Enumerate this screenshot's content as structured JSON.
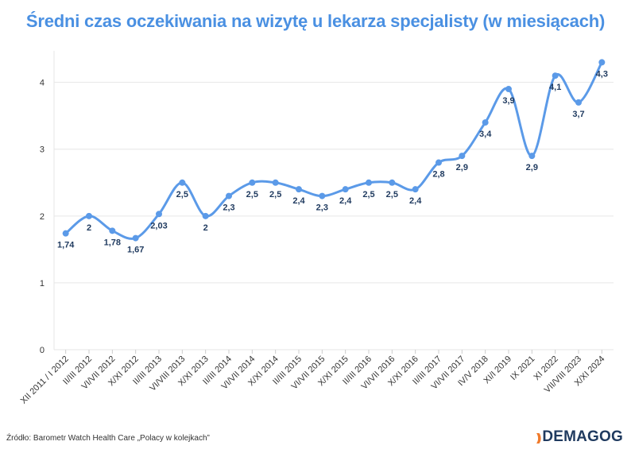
{
  "title": "Średni czas oczekiwania na wizytę u lekarza specjalisty (w miesiącach)",
  "source": "Źródło: Barometr Watch Health Care „Polacy w kolejkach”",
  "brand": {
    "name": "DEMAGOG",
    "mark": "))"
  },
  "colors": {
    "line": "#5b9ae8",
    "title": "#4a90e2",
    "labels": "#1f3a5f",
    "grid": "#e6e6e6",
    "brand_mark": "#f07a2b"
  },
  "chart_data": {
    "type": "line",
    "title": "Średni czas oczekiwania na wizytę u lekarza specjalisty (w miesiącach)",
    "xlabel": "",
    "ylabel": "",
    "ylim": [
      0,
      4.4
    ],
    "yticks": [
      "0",
      "1",
      "2",
      "3",
      "4"
    ],
    "grid": "horizontal",
    "legend": "none",
    "categories": [
      "XII 2011 / I 2012",
      "II/III 2012",
      "VI/VII 2012",
      "X/XI 2012",
      "II/III 2013",
      "VI/VIII 2013",
      "X/XI 2013",
      "II/III 2014",
      "VI/VII 2014",
      "X/XI 2014",
      "II/III 2015",
      "VI/VII 2015",
      "X/XI 2015",
      "II/III 2016",
      "VI/VII 2016",
      "X/XI 2016",
      "II/III 2017",
      "VI/VII 2017",
      "IV/V 2018",
      "XI/I 2019",
      "IX 2021",
      "XI 2022",
      "VII/VIII 2023",
      "X/XI 2024"
    ],
    "series": [
      {
        "values": [
          1.74,
          2,
          1.78,
          1.67,
          2.03,
          2.5,
          2,
          2.3,
          2.5,
          2.5,
          2.4,
          2.3,
          2.4,
          2.5,
          2.5,
          2.4,
          2.8,
          2.9,
          3.4,
          3.9,
          2.9,
          4.1,
          3.7,
          4.3
        ],
        "labels": [
          "1,74",
          "2",
          "1,78",
          "1,67",
          "2,03",
          "2,5",
          "2",
          "2,3",
          "2,5",
          "2,5",
          "2,4",
          "2,3",
          "2,4",
          "2,5",
          "2,5",
          "2,4",
          "2,8",
          "2,9",
          "3,4",
          "3,9",
          "2,9",
          "4,1",
          "3,7",
          "4,3"
        ]
      }
    ]
  }
}
